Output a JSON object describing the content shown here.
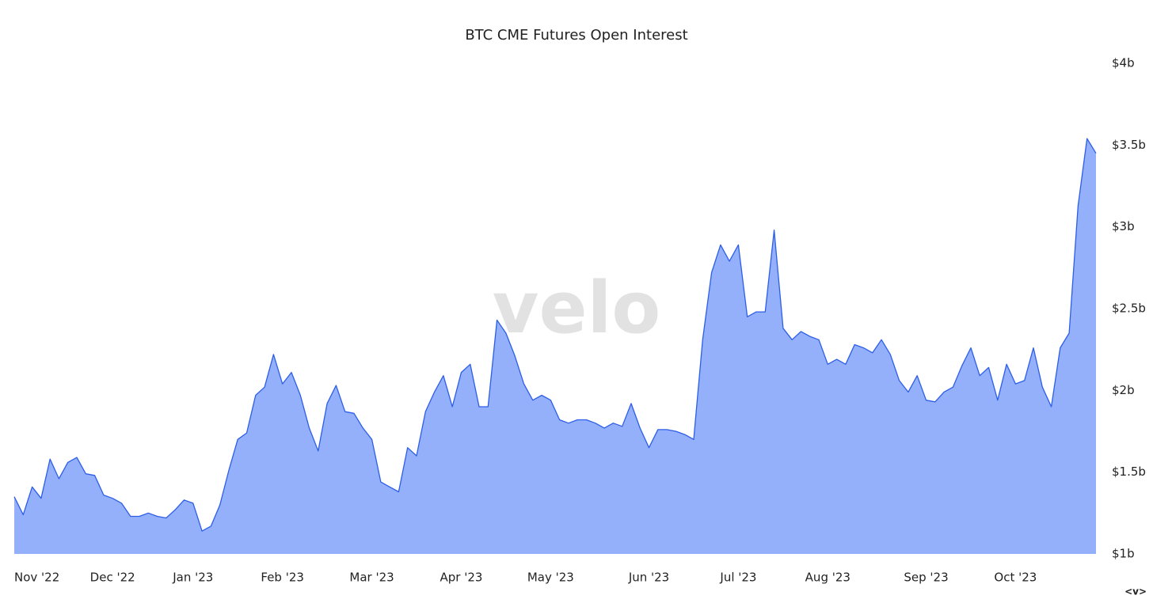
{
  "chart_data": {
    "type": "area",
    "title": "BTC CME Futures Open Interest",
    "watermark": "velo",
    "footer_mark": "<v>",
    "categories": [
      "Nov '22",
      null,
      null,
      null,
      null,
      null,
      null,
      null,
      null,
      null,
      null,
      "Dec '22",
      null,
      null,
      null,
      null,
      null,
      null,
      null,
      null,
      "Jan '23",
      null,
      null,
      null,
      null,
      null,
      null,
      null,
      null,
      null,
      "Feb '23",
      null,
      null,
      null,
      null,
      null,
      null,
      null,
      null,
      null,
      "Mar '23",
      null,
      null,
      null,
      null,
      null,
      null,
      null,
      null,
      null,
      "Apr '23",
      null,
      null,
      null,
      null,
      null,
      null,
      null,
      null,
      null,
      "May '23",
      null,
      null,
      null,
      null,
      null,
      null,
      null,
      null,
      null,
      null,
      "Jun '23",
      null,
      null,
      null,
      null,
      null,
      null,
      null,
      null,
      null,
      "Jul '23",
      null,
      null,
      null,
      null,
      null,
      null,
      null,
      null,
      null,
      "Aug '23",
      null,
      null,
      null,
      null,
      null,
      null,
      null,
      null,
      null,
      null,
      "Sep '23",
      null,
      null,
      null,
      null,
      null,
      null,
      null,
      null,
      null,
      "Oct '23",
      null,
      null,
      null,
      null,
      null,
      null,
      null,
      null,
      null
    ],
    "series": [
      {
        "name": "Open Interest",
        "color": "#2c5ee8",
        "fill": "#94b0fb",
        "values": [
          1.35,
          1.24,
          1.41,
          1.34,
          1.58,
          1.46,
          1.56,
          1.59,
          1.49,
          1.48,
          1.36,
          1.34,
          1.31,
          1.23,
          1.23,
          1.25,
          1.23,
          1.22,
          1.27,
          1.33,
          1.31,
          1.14,
          1.17,
          1.3,
          1.51,
          1.7,
          1.74,
          1.97,
          2.02,
          2.22,
          2.04,
          2.11,
          1.97,
          1.77,
          1.63,
          1.92,
          2.03,
          1.87,
          1.86,
          1.77,
          1.7,
          1.44,
          1.41,
          1.38,
          1.65,
          1.6,
          1.87,
          1.99,
          2.09,
          1.9,
          2.11,
          2.16,
          1.9,
          1.9,
          2.43,
          2.35,
          2.21,
          2.04,
          1.94,
          1.97,
          1.94,
          1.82,
          1.8,
          1.82,
          1.82,
          1.8,
          1.77,
          1.8,
          1.78,
          1.92,
          1.77,
          1.65,
          1.76,
          1.76,
          1.75,
          1.73,
          1.7,
          2.31,
          2.72,
          2.89,
          2.79,
          2.89,
          2.45,
          2.48,
          2.48,
          2.98,
          2.38,
          2.31,
          2.36,
          2.33,
          2.31,
          2.16,
          2.19,
          2.16,
          2.28,
          2.26,
          2.23,
          2.31,
          2.22,
          2.06,
          1.99,
          2.09,
          1.94,
          1.93,
          1.99,
          2.02,
          2.15,
          2.26,
          2.09,
          2.14,
          1.94,
          2.16,
          2.04,
          2.06,
          2.26,
          2.02,
          1.9,
          2.26,
          2.35,
          3.13,
          3.54,
          3.45
        ]
      }
    ],
    "ylim": [
      1,
      4
    ],
    "yticks": [
      {
        "value": 1,
        "label": "$1b"
      },
      {
        "value": 1.5,
        "label": "$1.5b"
      },
      {
        "value": 2,
        "label": "$2b"
      },
      {
        "value": 2.5,
        "label": "$2.5b"
      },
      {
        "value": 3,
        "label": "$3b"
      },
      {
        "value": 3.5,
        "label": "$3.5b"
      },
      {
        "value": 4,
        "label": "$4b"
      }
    ],
    "yaxis_side": "right",
    "grid": false,
    "legend": false
  }
}
